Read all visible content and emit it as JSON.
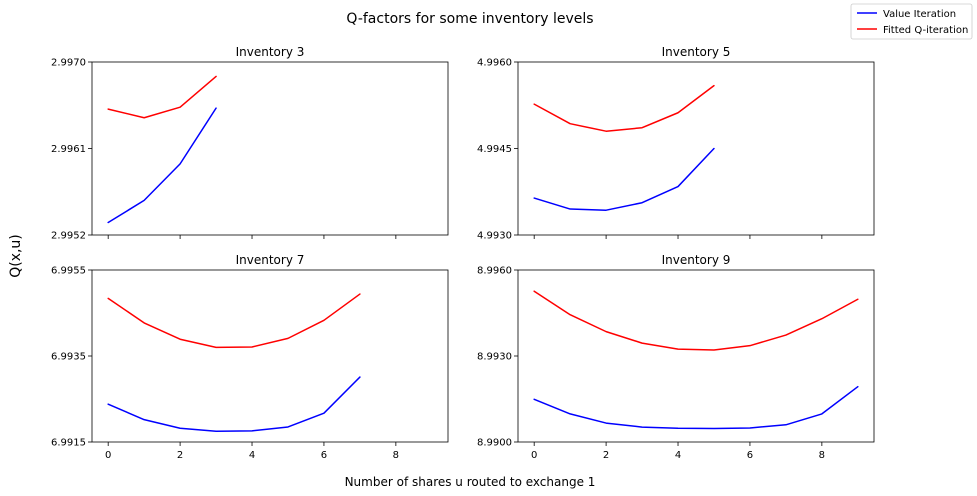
{
  "figure": {
    "title": "Q-factors for some inventory levels",
    "ylabel": "Q(x,u)",
    "xlabel": "Number of shares u routed to exchange 1",
    "legend": [
      {
        "label": "Value Iteration",
        "color": "#0000ff"
      },
      {
        "label": "Fitted Q-iteration",
        "color": "#ff0000"
      }
    ],
    "legend_placement": "top-right"
  },
  "chart_data": [
    {
      "type": "line",
      "title": "Inventory 3",
      "xlim": [
        -0.45,
        9.45
      ],
      "ylim": [
        2.9952,
        2.997
      ],
      "xticks": [
        0,
        2,
        4,
        6,
        8
      ],
      "yticks": [
        "2.9952",
        "2.9961",
        "2.9970"
      ],
      "show_xticklabels": false,
      "grid": false,
      "series": [
        {
          "name": "Value Iteration",
          "color": "#0000ff",
          "x": [
            0,
            1,
            2,
            3
          ],
          "y": [
            2.99533,
            2.99556,
            2.99594,
            2.99652
          ]
        },
        {
          "name": "Fitted Q-iteration",
          "color": "#ff0000",
          "x": [
            0,
            1,
            2,
            3
          ],
          "y": [
            2.99651,
            2.99642,
            2.99653,
            2.99685
          ]
        }
      ]
    },
    {
      "type": "line",
      "title": "Inventory 5",
      "xlim": [
        -0.45,
        9.45
      ],
      "ylim": [
        4.993,
        4.996
      ],
      "xticks": [
        0,
        2,
        4,
        6,
        8
      ],
      "yticks": [
        "4.9930",
        "4.9945",
        "4.9960"
      ],
      "show_xticklabels": false,
      "grid": false,
      "series": [
        {
          "name": "Value Iteration",
          "color": "#0000ff",
          "x": [
            0,
            1,
            2,
            3,
            4,
            5
          ],
          "y": [
            4.99364,
            4.99345,
            4.99343,
            4.99356,
            4.99384,
            4.9945
          ]
        },
        {
          "name": "Fitted Q-iteration",
          "color": "#ff0000",
          "x": [
            0,
            1,
            2,
            3,
            4,
            5
          ],
          "y": [
            4.99527,
            4.99493,
            4.9948,
            4.99486,
            4.99512,
            4.99559
          ]
        }
      ]
    },
    {
      "type": "line",
      "title": "Inventory 7",
      "xlim": [
        -0.45,
        9.45
      ],
      "ylim": [
        6.9915,
        6.9955
      ],
      "xticks": [
        0,
        2,
        4,
        6,
        8
      ],
      "yticks": [
        "6.9915",
        "6.9935",
        "6.9955"
      ],
      "show_xticklabels": true,
      "grid": false,
      "series": [
        {
          "name": "Value Iteration",
          "color": "#0000ff",
          "x": [
            0,
            1,
            2,
            3,
            4,
            5,
            6,
            7
          ],
          "y": [
            6.99238,
            6.99202,
            6.99182,
            6.99175,
            6.99176,
            6.99185,
            6.99217,
            6.99301
          ]
        },
        {
          "name": "Fitted Q-iteration",
          "color": "#ff0000",
          "x": [
            0,
            1,
            2,
            3,
            4,
            5,
            6,
            7
          ],
          "y": [
            6.99484,
            6.99427,
            6.99389,
            6.9937,
            6.99371,
            6.99391,
            6.99433,
            6.99494
          ]
        }
      ]
    },
    {
      "type": "line",
      "title": "Inventory 9",
      "xlim": [
        -0.45,
        9.45
      ],
      "ylim": [
        8.99,
        8.996
      ],
      "xticks": [
        0,
        2,
        4,
        6,
        8
      ],
      "yticks": [
        "8.9900",
        "8.9930",
        "8.9960"
      ],
      "show_xticklabels": true,
      "grid": false,
      "series": [
        {
          "name": "Value Iteration",
          "color": "#0000ff",
          "x": [
            0,
            1,
            2,
            3,
            4,
            5,
            6,
            7,
            8,
            9
          ],
          "y": [
            8.99149,
            8.99098,
            8.99066,
            8.99052,
            8.99048,
            8.99047,
            8.99049,
            8.9906,
            8.99098,
            8.99193
          ]
        },
        {
          "name": "Fitted Q-iteration",
          "color": "#ff0000",
          "x": [
            0,
            1,
            2,
            3,
            4,
            5,
            6,
            7,
            8,
            9
          ],
          "y": [
            8.99526,
            8.99444,
            8.99385,
            8.99345,
            8.99324,
            8.99321,
            8.99336,
            8.99373,
            8.9943,
            8.99498
          ]
        }
      ]
    }
  ]
}
